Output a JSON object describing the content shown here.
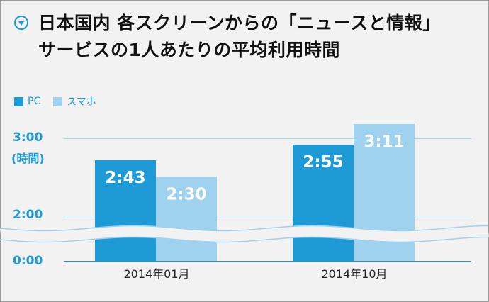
{
  "title_line1": "日本国内 各スクリーンからの「ニュースと情報」",
  "title_line2": "サービスの1人あたりの平均利用時間",
  "chart_data": {
    "type": "bar",
    "categories": [
      "2014年01月",
      "2014年10月"
    ],
    "series": [
      {
        "name": "PC",
        "values": [
          163,
          175
        ],
        "labels": [
          "2:43",
          "2:55"
        ],
        "color": "#1e9bd7"
      },
      {
        "name": "スマホ",
        "values": [
          150,
          191
        ],
        "labels": [
          "2:30",
          "3:11"
        ],
        "color": "#9fd2ef"
      }
    ],
    "yticks": [
      "3:00",
      "2:00",
      "0:00"
    ],
    "ylabel": "(時間)",
    "axis_break": true,
    "ylim_minutes": [
      0,
      180
    ],
    "legend_position": "top-left",
    "grid": true
  }
}
